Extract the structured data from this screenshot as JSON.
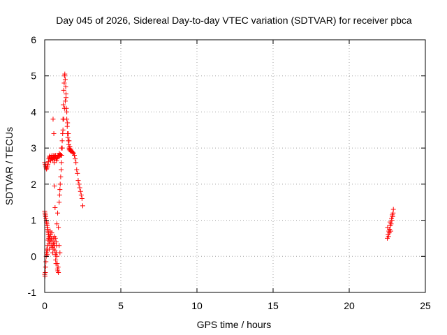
{
  "chart_data": {
    "type": "scatter",
    "title": "Day 045 of 2026, Sidereal Day-to-day VTEC variation (SDTVAR) for receiver pbca",
    "xlabel": "GPS time / hours",
    "ylabel": "SDTVAR / TECUs",
    "xlim": [
      0,
      25
    ],
    "ylim": [
      -1,
      6
    ],
    "xticks": [
      "0",
      "5",
      "10",
      "15",
      "20",
      "25"
    ],
    "yticks": [
      "-1",
      "0",
      "1",
      "2",
      "3",
      "4",
      "5",
      "6"
    ],
    "grid": true,
    "marker": "plus",
    "color": "#ff0000",
    "series": [
      {
        "x": [
          0.0,
          0.03,
          0.06,
          0.09,
          0.12,
          0.15,
          0.18,
          0.21,
          0.24,
          0.27,
          0.3,
          0.33,
          0.36,
          0.39,
          0.42,
          0.45,
          0.48,
          0.51,
          0.54,
          0.57,
          0.6,
          0.63,
          0.66,
          0.69,
          0.72,
          0.75,
          0.78,
          0.81,
          0.84,
          0.87,
          0.9,
          0.93,
          0.96,
          0.99,
          1.02,
          1.05
        ],
        "y": [
          2.6,
          2.55,
          2.5,
          2.45,
          2.42,
          2.45,
          2.5,
          2.55,
          2.62,
          2.7,
          2.75,
          2.78,
          2.72,
          2.65,
          2.7,
          2.75,
          2.8,
          2.72,
          2.68,
          2.75,
          2.8,
          2.78,
          2.7,
          2.75,
          2.8,
          2.72,
          2.65,
          2.7,
          2.75,
          2.8,
          2.78,
          2.8,
          2.85,
          2.78,
          2.82,
          2.8
        ]
      },
      {
        "x": [
          0.0,
          0.02,
          0.04,
          0.06,
          0.08,
          0.1,
          0.12,
          0.14,
          0.16,
          0.18,
          0.2,
          0.22,
          0.24,
          0.26,
          0.28,
          0.3,
          0.32,
          0.34,
          0.36,
          0.38,
          0.4,
          0.42,
          0.44,
          0.46,
          0.48,
          0.5,
          0.52,
          0.54,
          0.56,
          0.58,
          0.6,
          0.62,
          0.64,
          0.66,
          0.68,
          0.7,
          0.72,
          0.74,
          0.76,
          0.78,
          0.8,
          0.82,
          0.84,
          0.86,
          0.88,
          0.9
        ],
        "y": [
          -0.5,
          -0.55,
          -0.45,
          -0.3,
          -0.15,
          0.0,
          0.1,
          0.2,
          0.05,
          0.15,
          0.3,
          0.45,
          0.6,
          0.5,
          0.35,
          0.2,
          0.4,
          0.55,
          0.7,
          0.6,
          0.45,
          0.3,
          0.5,
          0.65,
          0.4,
          0.25,
          0.1,
          0.3,
          0.5,
          0.35,
          0.2,
          0.4,
          0.55,
          0.3,
          0.15,
          0.05,
          -0.1,
          -0.2,
          0.1,
          0.3,
          0.0,
          -0.2,
          -0.35,
          -0.4,
          -0.3,
          -0.45
        ]
      },
      {
        "x": [
          0.0,
          0.02,
          0.04,
          0.06,
          0.08,
          0.1,
          0.12,
          0.14,
          0.16,
          0.18,
          0.2,
          0.22,
          0.24,
          0.26,
          0.28,
          0.3
        ],
        "y": [
          1.25,
          1.2,
          1.15,
          1.1,
          1.05,
          1.0,
          0.95,
          0.9,
          0.85,
          0.8,
          0.75,
          0.7,
          0.65,
          0.6,
          0.55,
          0.5
        ]
      },
      {
        "x": [
          0.55,
          0.6,
          0.62,
          0.65,
          0.68,
          0.7,
          0.75,
          0.8,
          0.85,
          0.9,
          0.95,
          1.0
        ],
        "y": [
          3.8,
          3.4,
          2.6,
          1.95,
          1.35,
          0.5,
          0.4,
          0.9,
          1.2,
          0.8,
          0.3,
          0.1
        ]
      },
      {
        "x": [
          0.95,
          0.98,
          1.0,
          1.02,
          1.05,
          1.08,
          1.1,
          1.12,
          1.15,
          1.18,
          1.2,
          1.22,
          1.25,
          1.28,
          1.3,
          1.32,
          1.35,
          1.38,
          1.4,
          1.42,
          1.45,
          1.48,
          1.5,
          1.52,
          1.55,
          1.58,
          1.6,
          1.62,
          1.65,
          1.68,
          1.7
        ],
        "y": [
          1.5,
          1.7,
          1.85,
          2.0,
          2.2,
          2.4,
          2.6,
          2.8,
          3.0,
          3.4,
          3.8,
          4.2,
          4.6,
          4.8,
          5.0,
          5.05,
          4.9,
          4.7,
          4.4,
          4.1,
          3.8,
          3.6,
          3.4,
          3.3,
          3.2,
          3.1,
          3.0,
          2.95,
          2.98,
          2.92,
          2.95
        ]
      },
      {
        "x": [
          1.1,
          1.15,
          1.2,
          1.25,
          1.3,
          1.35,
          1.4,
          1.45,
          1.5,
          1.55,
          1.6,
          1.65,
          1.7,
          1.75,
          1.8,
          1.85,
          1.9,
          1.95,
          2.0,
          2.05,
          2.1,
          2.15,
          2.2,
          2.25,
          2.3,
          2.35,
          2.4,
          2.45,
          2.5
        ],
        "y": [
          3.0,
          3.2,
          3.5,
          3.8,
          4.1,
          4.3,
          4.5,
          4.0,
          3.7,
          3.4,
          3.2,
          3.05,
          2.95,
          2.92,
          2.9,
          2.88,
          2.85,
          2.8,
          2.7,
          2.6,
          2.4,
          2.3,
          2.1,
          2.0,
          1.9,
          1.8,
          1.7,
          1.6,
          1.4
        ]
      },
      {
        "x": [
          22.5,
          22.55,
          22.6,
          22.65,
          22.7,
          22.75,
          22.8,
          22.85,
          22.9,
          22.52,
          22.58,
          22.63,
          22.68,
          22.73,
          22.78,
          22.83,
          22.88
        ],
        "y": [
          0.5,
          0.6,
          0.7,
          0.75,
          0.85,
          0.9,
          1.0,
          1.1,
          1.3,
          0.8,
          0.55,
          0.65,
          0.95,
          0.7,
          1.05,
          1.15,
          1.2
        ]
      }
    ]
  }
}
